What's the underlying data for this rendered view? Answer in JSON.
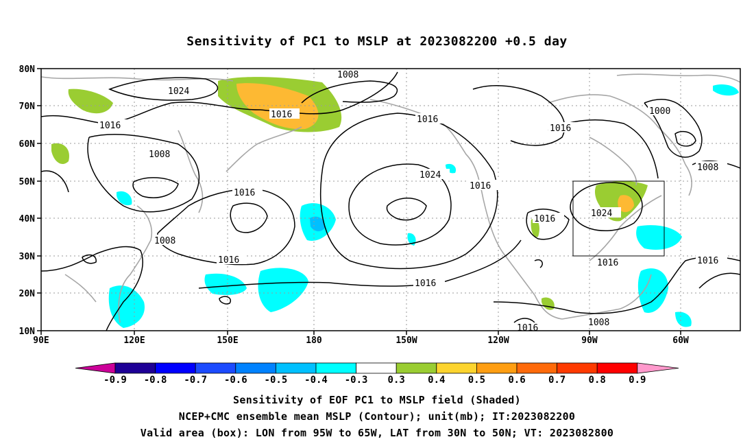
{
  "title": "Sensitivity of PC1 to MSLP at 2023082200 +0.5 day",
  "map": {
    "lat_ticks": [
      "80N",
      "70N",
      "60N",
      "50N",
      "40N",
      "30N",
      "20N",
      "10N"
    ],
    "lon_ticks": [
      "90E",
      "120E",
      "150E",
      "180",
      "150W",
      "120W",
      "90W",
      "60W"
    ],
    "contour_labels": [
      "1008",
      "1024",
      "1016",
      "1016",
      "1016",
      "1016",
      "1000",
      "1008",
      "1024",
      "1016",
      "1016",
      "1008",
      "1016",
      "1024",
      "1016",
      "1016",
      "1016",
      "1008",
      "1008",
      "1016",
      "1016"
    ],
    "valid_box": {
      "lon": [
        "95W",
        "65W"
      ],
      "lat": [
        "30N",
        "50N"
      ]
    },
    "colors": {
      "positive_green": "#9acd32",
      "positive_orange": "#fdb933",
      "negative_cyan": "#00ffff",
      "negative_sky": "#00c0ff",
      "coastline": "#a6a6a6",
      "contour": "#000000"
    }
  },
  "colorbar": {
    "labels": [
      "-0.9",
      "-0.8",
      "-0.7",
      "-0.6",
      "-0.5",
      "-0.4",
      "-0.3",
      "0.3",
      "0.4",
      "0.5",
      "0.6",
      "0.7",
      "0.8",
      "0.9"
    ],
    "colors": [
      "#1e0096",
      "#0000ff",
      "#1c4bff",
      "#0082ff",
      "#00c0ff",
      "#00ffff",
      "#ffffff",
      "#9acd32",
      "#fdd42e",
      "#ff9e12",
      "#ff6a0a",
      "#ff3a00",
      "#ff0000"
    ],
    "end_low": "#cc0099",
    "end_high": "#ff99cc"
  },
  "captions": [
    "Sensitivity of EOF PC1 to MSLP field (Shaded)",
    "NCEP+CMC ensemble mean MSLP (Contour); unit(mb); IT:2023082200",
    "Valid area (box): LON from 95W to 65W, LAT from 30N to 50N; VT: 2023082800"
  ]
}
